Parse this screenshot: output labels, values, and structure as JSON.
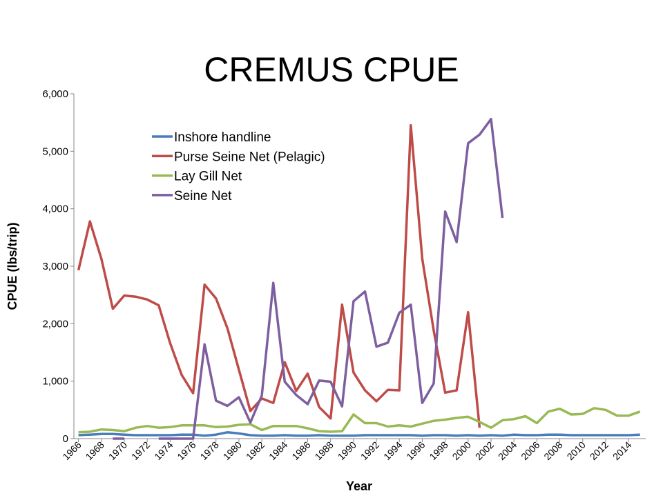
{
  "chart_data": {
    "type": "line",
    "title": "CREMUS CPUE",
    "xlabel": "Year",
    "ylabel": "CPUE (lbs/trip)",
    "x": [
      1966,
      1967,
      1968,
      1969,
      1970,
      1971,
      1972,
      1973,
      1974,
      1975,
      1976,
      1977,
      1978,
      1979,
      1980,
      1981,
      1982,
      1983,
      1984,
      1985,
      1986,
      1987,
      1988,
      1989,
      1990,
      1991,
      1992,
      1993,
      1994,
      1995,
      1996,
      1997,
      1998,
      1999,
      2000,
      2001,
      2002,
      2003,
      2004,
      2005,
      2006,
      2007,
      2008,
      2009,
      2010,
      2011,
      2012,
      2013,
      2014,
      2015
    ],
    "xlim": [
      1965.6,
      2015.5
    ],
    "xticks": [
      1966,
      1968,
      1970,
      1972,
      1974,
      1976,
      1978,
      1980,
      1982,
      1984,
      1986,
      1988,
      1990,
      1992,
      1994,
      1996,
      1998,
      2000,
      2002,
      2004,
      2006,
      2008,
      2010,
      2012,
      2014
    ],
    "ylim": [
      0,
      6000
    ],
    "yticks": [
      0,
      {
        "value": 1000,
        "label": "1,000"
      },
      {
        "value": 2000,
        "label": "2,000"
      },
      {
        "value": 3000,
        "label": "3,000"
      },
      {
        "value": 4000,
        "label": "4,000"
      },
      {
        "value": 5000,
        "label": "5,000"
      },
      {
        "value": 6000,
        "label": "6,000"
      }
    ],
    "grid": false,
    "legend": "upper left",
    "series": [
      {
        "name": "Inshore handline",
        "color": "#4a7ebb",
        "values": [
          60,
          70,
          80,
          80,
          70,
          60,
          60,
          60,
          60,
          70,
          70,
          50,
          70,
          110,
          90,
          60,
          50,
          50,
          60,
          50,
          50,
          60,
          50,
          50,
          50,
          60,
          60,
          60,
          60,
          60,
          50,
          60,
          60,
          50,
          60,
          50,
          60,
          50,
          70,
          60,
          60,
          70,
          70,
          60,
          60,
          60,
          60,
          60,
          60,
          70
        ]
      },
      {
        "name": "Purse Seine Net (Pelagic)",
        "color": "#be4b48",
        "values": [
          2930,
          3780,
          3130,
          2260,
          2490,
          2470,
          2420,
          2320,
          1660,
          1110,
          790,
          2680,
          2440,
          1920,
          1200,
          480,
          700,
          620,
          1330,
          830,
          1130,
          550,
          350,
          2330,
          1150,
          840,
          650,
          850,
          840,
          5450,
          3130,
          1880,
          800,
          840,
          2200,
          190,
          null,
          null,
          null,
          null,
          null,
          null,
          null,
          null,
          null,
          null,
          null,
          null,
          null,
          null
        ]
      },
      {
        "name": "Lay Gill Net",
        "color": "#98b954",
        "values": [
          110,
          120,
          160,
          150,
          130,
          190,
          220,
          190,
          200,
          230,
          230,
          230,
          200,
          210,
          240,
          250,
          150,
          220,
          220,
          220,
          180,
          130,
          120,
          130,
          420,
          270,
          270,
          210,
          230,
          210,
          260,
          310,
          330,
          360,
          380,
          290,
          190,
          320,
          340,
          390,
          270,
          470,
          520,
          420,
          430,
          530,
          500,
          400,
          400,
          470
        ]
      },
      {
        "name": "Seine Net",
        "color": "#7d5fa0",
        "values": [
          null,
          null,
          null,
          0,
          0,
          null,
          null,
          0,
          0,
          0,
          0,
          1640,
          660,
          570,
          720,
          280,
          750,
          2710,
          990,
          760,
          600,
          1010,
          990,
          560,
          2390,
          2560,
          1600,
          1670,
          2190,
          2330,
          620,
          960,
          3950,
          3420,
          5140,
          5290,
          5560,
          3840,
          null,
          null,
          null,
          null,
          null,
          null,
          null,
          null,
          null,
          null,
          null,
          null
        ]
      }
    ]
  }
}
